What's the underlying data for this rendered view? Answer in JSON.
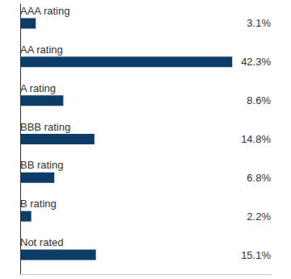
{
  "chart_data": {
    "type": "bar",
    "orientation": "horizontal",
    "categories": [
      "AAA rating",
      "AA rating",
      "A rating",
      "BBB rating",
      "BB rating",
      "B rating",
      "Not rated"
    ],
    "values": [
      3.1,
      42.3,
      8.6,
      14.8,
      6.8,
      2.2,
      15.1
    ],
    "value_labels": [
      "3.1%",
      "42.3%",
      "8.6%",
      "14.8%",
      "6.8%",
      "2.2%",
      "15.1%"
    ],
    "color": "#0c3c68",
    "xlim": [
      0,
      50
    ],
    "xticks": [],
    "grid": false,
    "data_labels": true,
    "tick_labels": "y"
  }
}
